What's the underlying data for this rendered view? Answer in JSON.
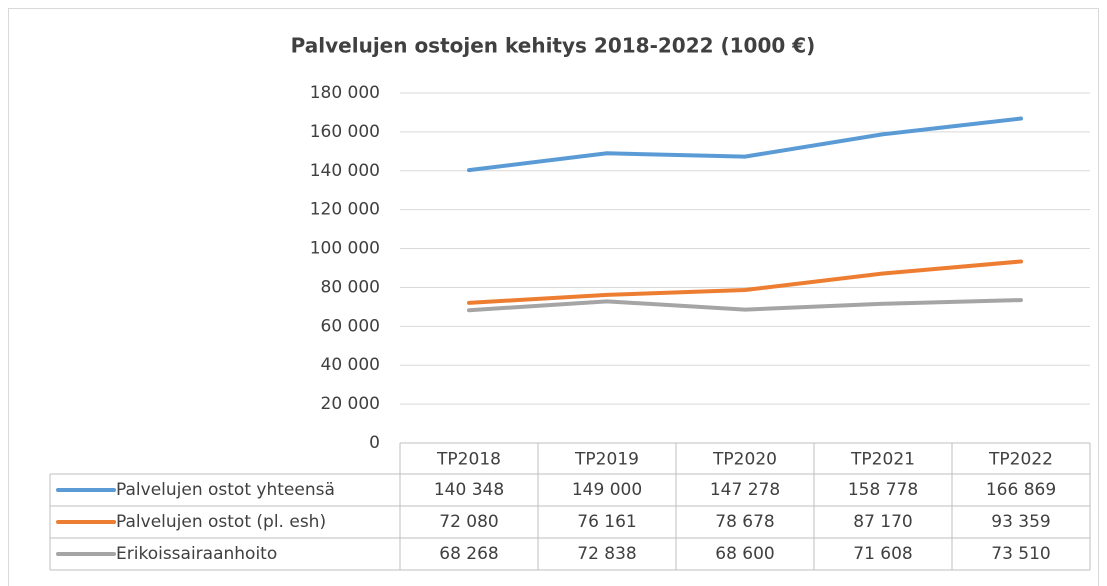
{
  "chart_data": {
    "type": "line",
    "title": "Palvelujen ostojen kehitys 2018-2022 (1000 €)",
    "categories": [
      "TP2018",
      "TP2019",
      "TP2020",
      "TP2021",
      "TP2022"
    ],
    "series": [
      {
        "name": "Palvelujen ostot yhteensä",
        "color": "#5b9bd5",
        "values": [
          140348,
          149000,
          147278,
          158778,
          166869
        ],
        "value_labels": [
          "140 348",
          "149 000",
          "147 278",
          "158 778",
          "166 869"
        ]
      },
      {
        "name": "Palvelujen ostot (pl. esh)",
        "color": "#ed7d31",
        "values": [
          72080,
          76161,
          78678,
          87170,
          93359
        ],
        "value_labels": [
          "72 080",
          "76 161",
          "78 678",
          "87 170",
          "93 359"
        ]
      },
      {
        "name": "Erikoissairaanhoito",
        "color": "#a5a5a5",
        "values": [
          68268,
          72838,
          68600,
          71608,
          73510
        ],
        "value_labels": [
          "68 268",
          "72 838",
          "68 600",
          "71 608",
          "73 510"
        ]
      }
    ],
    "ylim": [
      0,
      180000
    ],
    "yticks": [
      0,
      {
        "value": 20000,
        "label": "20 000"
      },
      {
        "value": 40000,
        "label": "40 000"
      },
      {
        "value": 60000,
        "label": "60 000"
      },
      {
        "value": 80000,
        "label": "80 000"
      },
      {
        "value": 100000,
        "label": "100 000"
      },
      {
        "value": 120000,
        "label": "120 000"
      },
      {
        "value": 140000,
        "label": "140 000"
      },
      {
        "value": 160000,
        "label": "160 000"
      },
      {
        "value": 180000,
        "label": "180 000"
      }
    ],
    "grid": true
  }
}
